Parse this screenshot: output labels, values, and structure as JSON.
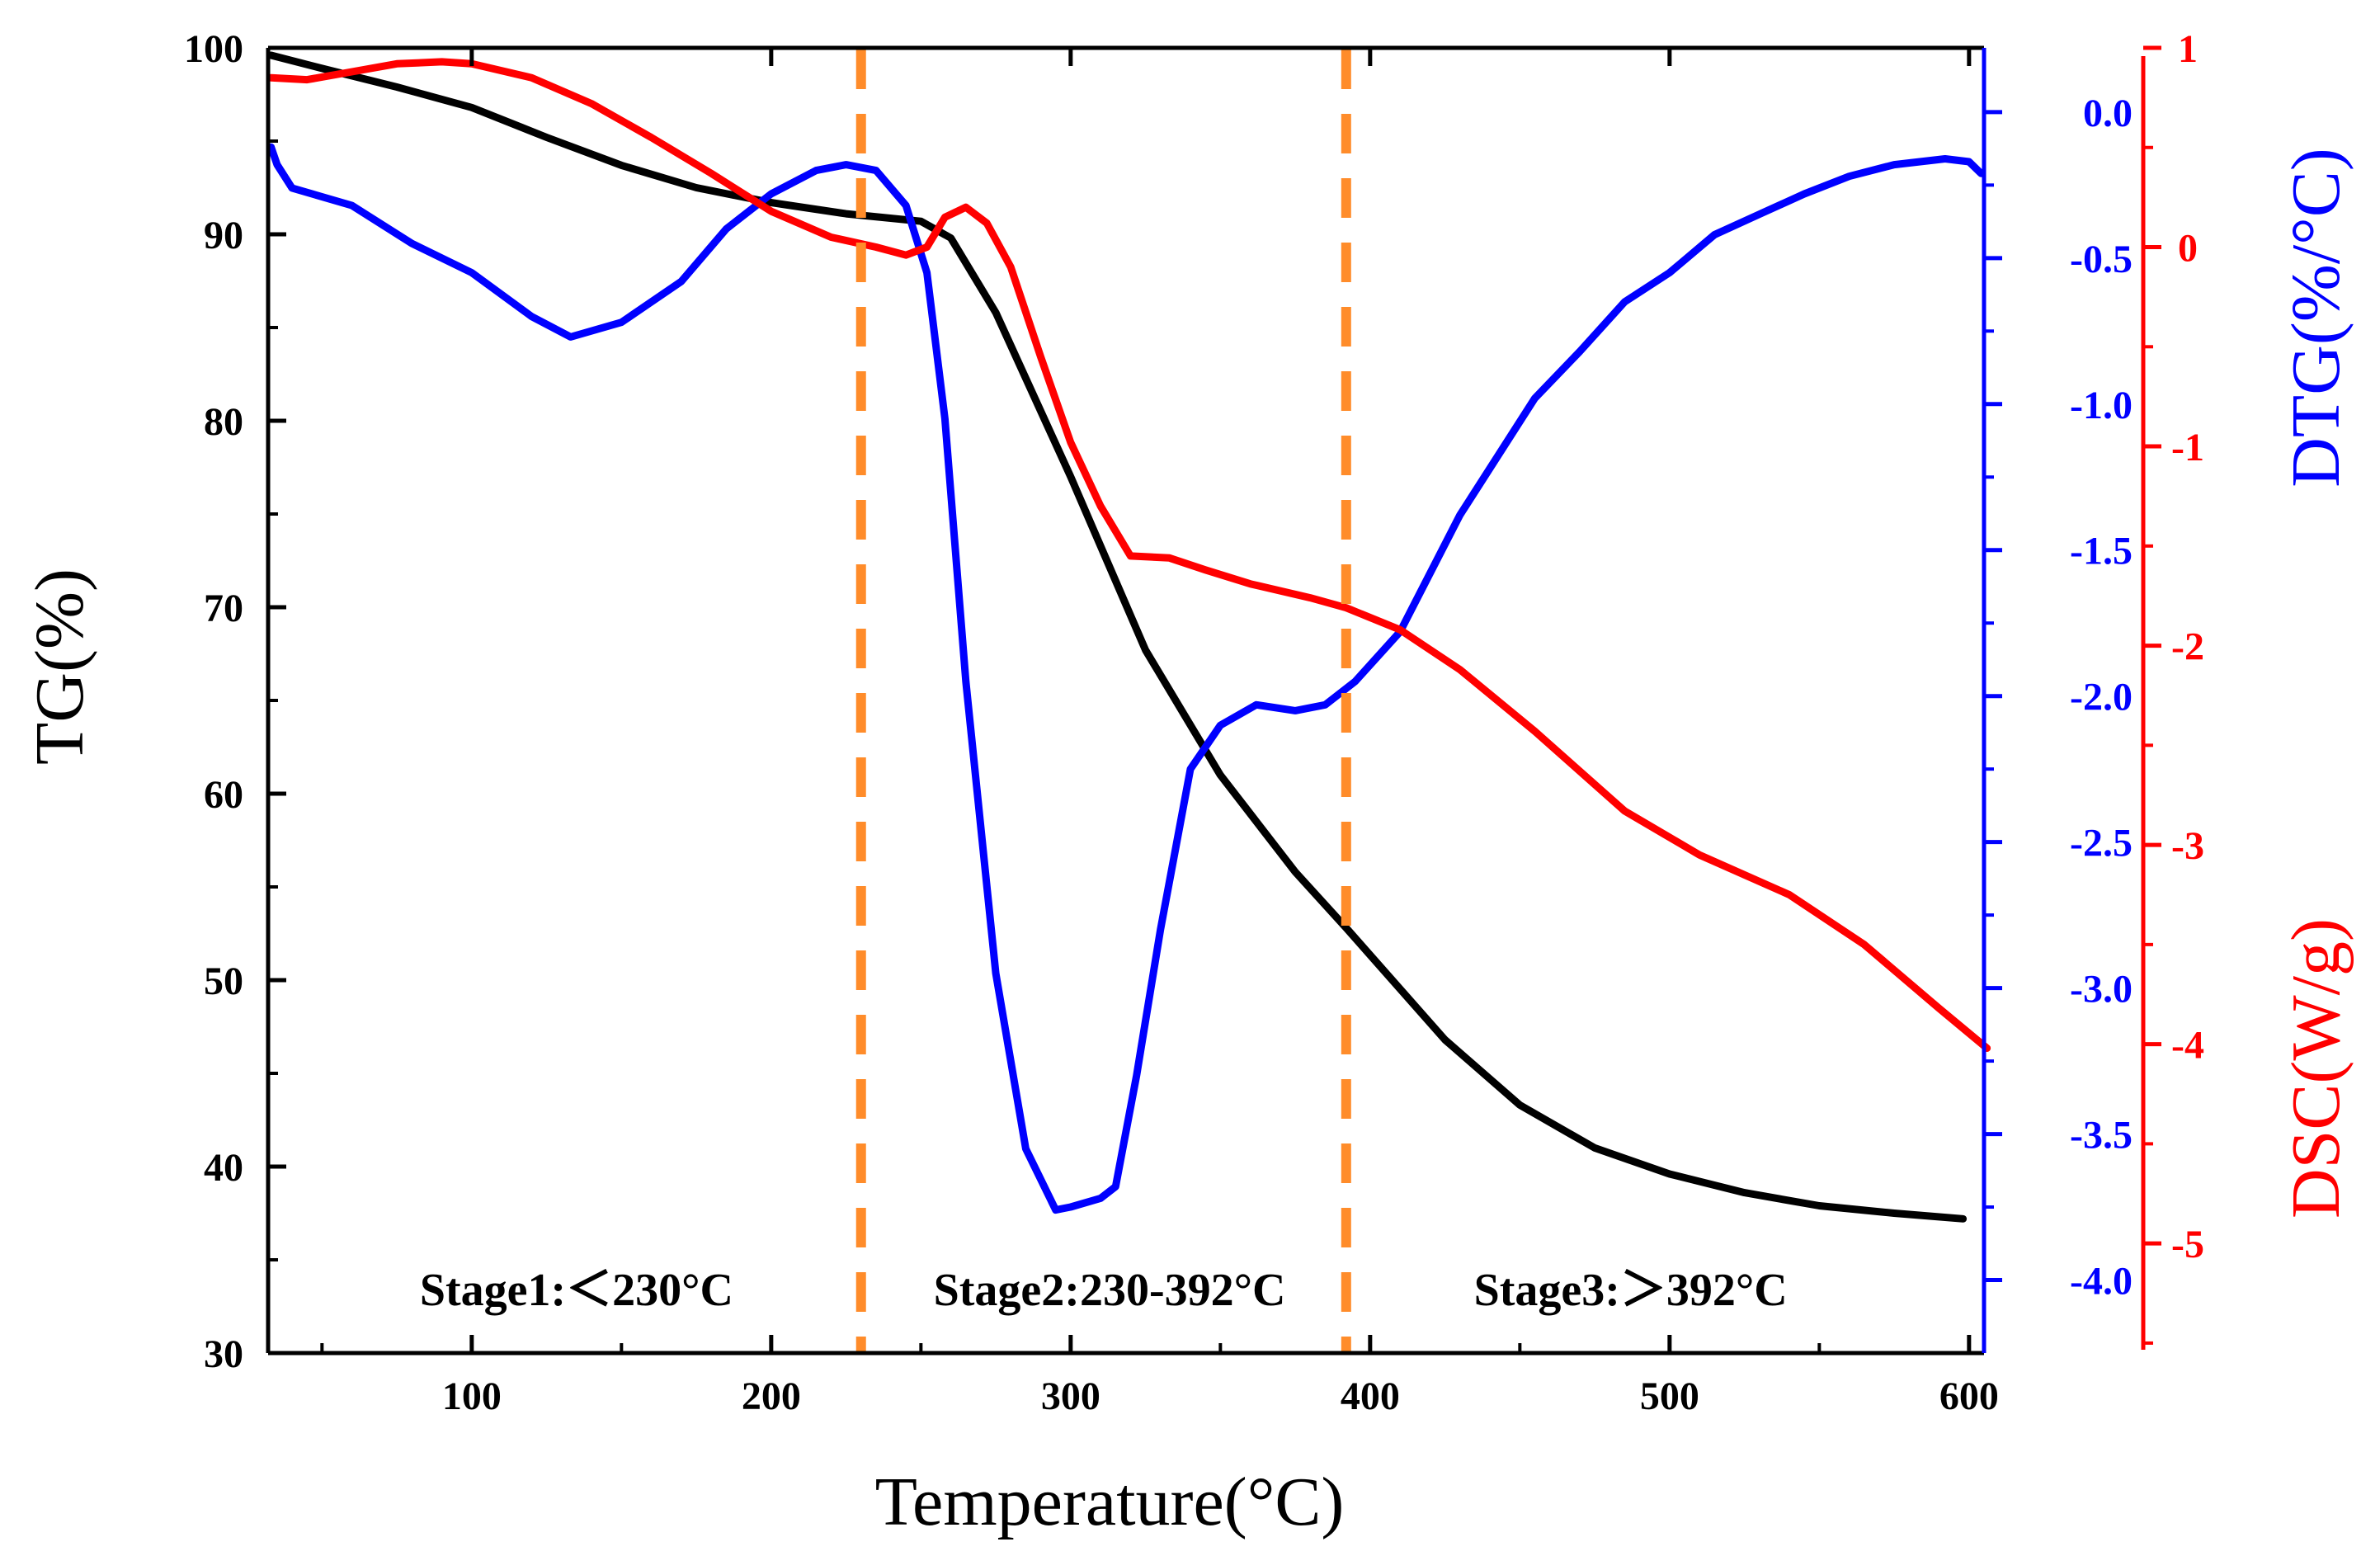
{
  "chart_data": {
    "type": "line",
    "title": "",
    "xlabel": "Temperature(°C)",
    "xlim": [
      32,
      605
    ],
    "xticks": [
      100,
      200,
      300,
      400,
      500,
      600
    ],
    "axes": {
      "tg": {
        "label": "TG(%)",
        "color": "#000000",
        "ylim": [
          30,
          100
        ],
        "ticks": [
          30,
          40,
          50,
          60,
          70,
          80,
          90,
          100
        ]
      },
      "dtg": {
        "label": "DTG(%/°C)",
        "color": "#0000FF",
        "ylim": [
          -4.25,
          0.22
        ],
        "ticks": [
          "0.0",
          "-0.5",
          "-1.0",
          "-1.5",
          "-2.0",
          "-2.5",
          "-3.0",
          "-3.5",
          "-4.0"
        ]
      },
      "dsc": {
        "label": "DSC(W/g)",
        "color": "#FF0000",
        "ylim": [
          -5.55,
          1.0
        ],
        "ticks": [
          "1",
          "0",
          "-1",
          "-2",
          "-3",
          "-4",
          "-5"
        ]
      }
    },
    "series": [
      {
        "name": "TG",
        "axis": "tg",
        "color": "#000000",
        "x": [
          33,
          50,
          75,
          100,
          125,
          150,
          175,
          200,
          225,
          250,
          260,
          275,
          300,
          325,
          350,
          375,
          392,
          425,
          450,
          475,
          500,
          525,
          550,
          575,
          598
        ],
        "y": [
          99.6,
          98.9,
          97.9,
          96.8,
          95.2,
          93.7,
          92.5,
          91.7,
          91.1,
          90.7,
          89.8,
          85.8,
          77.0,
          67.7,
          61.0,
          55.8,
          52.8,
          46.8,
          43.3,
          41.0,
          39.6,
          38.6,
          37.9,
          37.5,
          37.2
        ]
      },
      {
        "name": "DTG",
        "axis": "dtg",
        "color": "#0000FF",
        "x": [
          33,
          35,
          40,
          60,
          80,
          100,
          120,
          133,
          150,
          170,
          185,
          200,
          215,
          225,
          235,
          245,
          252,
          258,
          265,
          275,
          285,
          295,
          300,
          310,
          315,
          322,
          330,
          340,
          350,
          362,
          375,
          385,
          395,
          410,
          430,
          455,
          470,
          485,
          500,
          515,
          530,
          545,
          560,
          575,
          592,
          600,
          604
        ],
        "y": [
          -0.12,
          -0.18,
          -0.26,
          -0.32,
          -0.45,
          -0.55,
          -0.7,
          -0.77,
          -0.72,
          -0.58,
          -0.4,
          -0.28,
          -0.2,
          -0.18,
          -0.2,
          -0.32,
          -0.55,
          -1.05,
          -1.95,
          -2.95,
          -3.55,
          -3.76,
          -3.75,
          -3.72,
          -3.68,
          -3.3,
          -2.8,
          -2.25,
          -2.1,
          -2.03,
          -2.05,
          -2.03,
          -1.95,
          -1.78,
          -1.38,
          -0.98,
          -0.82,
          -0.65,
          -0.55,
          -0.42,
          -0.35,
          -0.28,
          -0.22,
          -0.18,
          -0.16,
          -0.17,
          -0.21
        ]
      },
      {
        "name": "DSC",
        "axis": "dsc",
        "color": "#FF0000",
        "x": [
          33,
          45,
          60,
          75,
          90,
          100,
          120,
          140,
          160,
          180,
          200,
          220,
          235,
          245,
          252,
          258,
          265,
          272,
          280,
          290,
          300,
          310,
          320,
          333,
          345,
          360,
          380,
          392,
          410,
          430,
          455,
          485,
          510,
          540,
          565,
          590,
          606
        ],
        "y": [
          0.85,
          0.84,
          0.88,
          0.92,
          0.93,
          0.92,
          0.85,
          0.72,
          0.55,
          0.37,
          0.18,
          0.05,
          0.0,
          -0.04,
          0.0,
          0.15,
          0.2,
          0.12,
          -0.1,
          -0.55,
          -0.98,
          -1.3,
          -1.55,
          -1.56,
          -1.62,
          -1.69,
          -1.76,
          -1.81,
          -1.92,
          -2.12,
          -2.43,
          -2.83,
          -3.05,
          -3.25,
          -3.5,
          -3.82,
          -4.02
        ]
      }
    ],
    "annotations": [
      {
        "type": "vline",
        "x": 230,
        "color": "#FF8C2A",
        "style": "dashed"
      },
      {
        "type": "vline",
        "x": 392,
        "color": "#FF8C2A",
        "style": "dashed"
      },
      {
        "type": "text",
        "text": "Stage1:＜230°C",
        "x": 135
      },
      {
        "type": "text",
        "text": "Stage2:230-392°C",
        "x": 313
      },
      {
        "type": "text",
        "text": "Stage3:＞392°C",
        "x": 487
      }
    ]
  }
}
